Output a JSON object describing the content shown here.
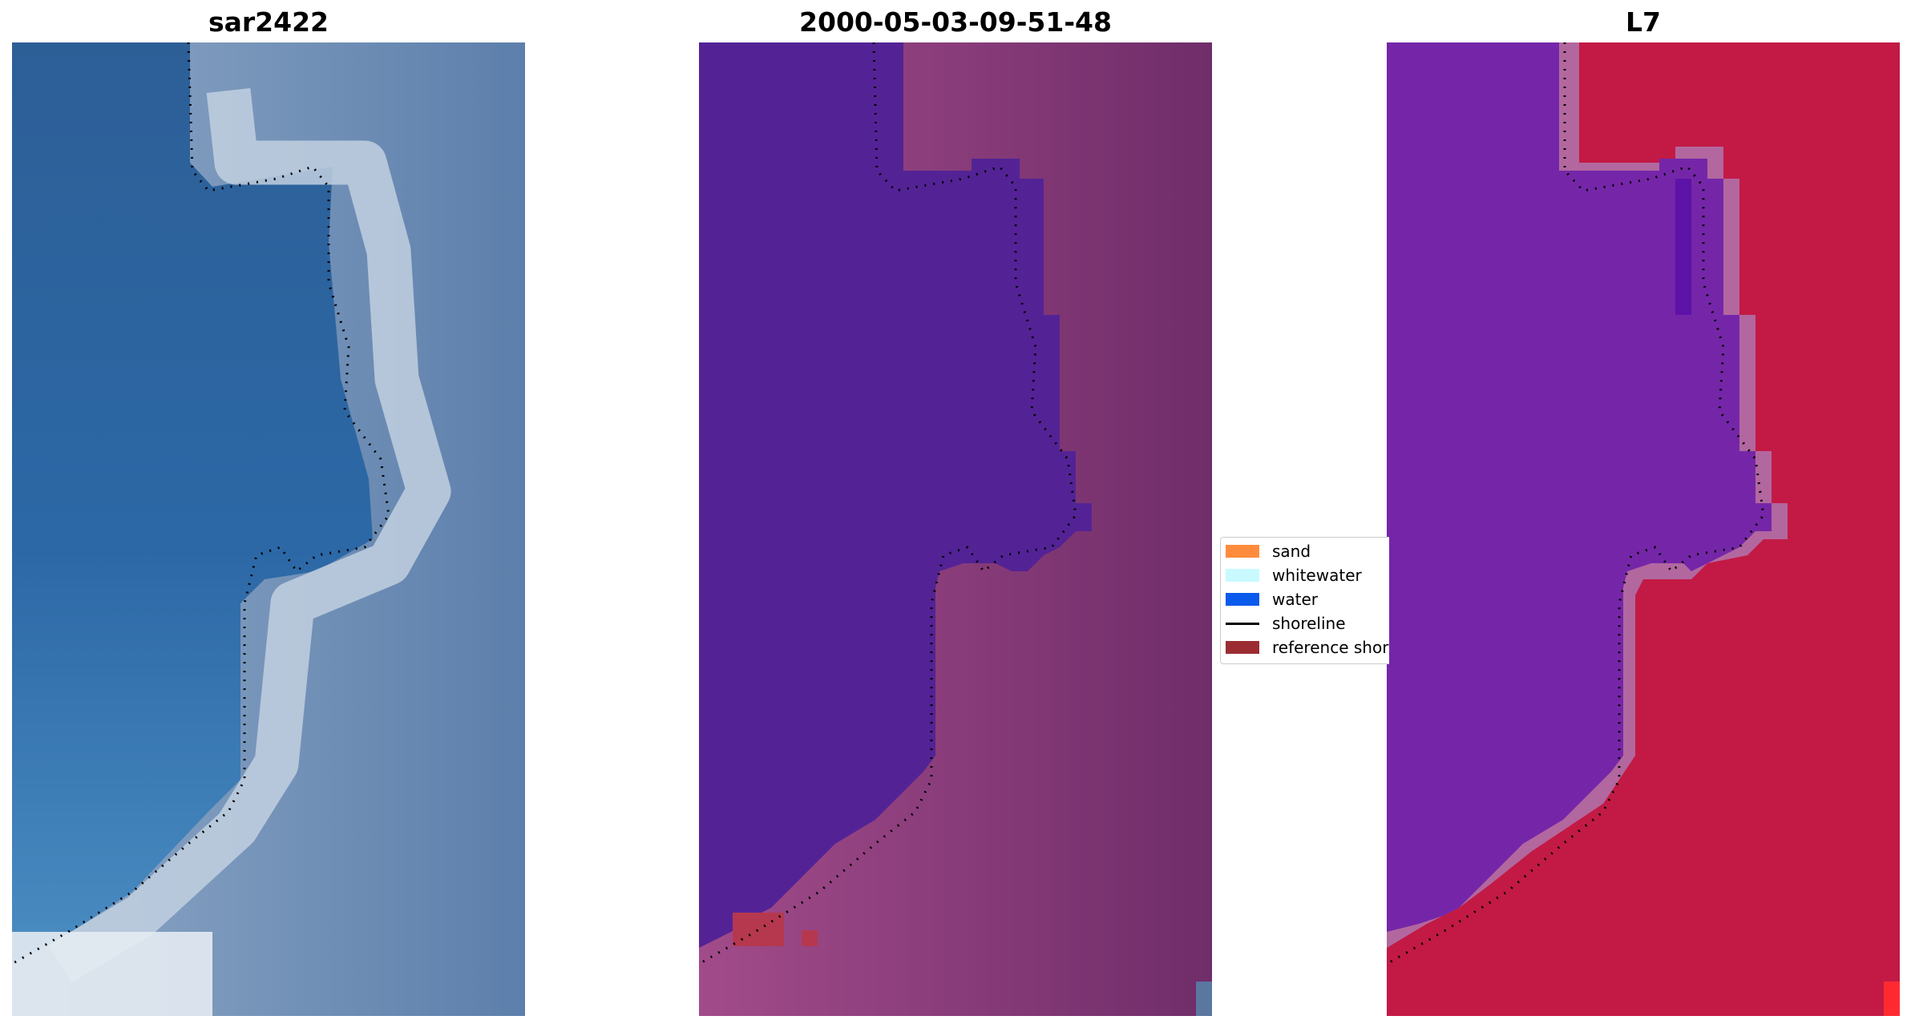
{
  "panels": [
    {
      "title": "sar2422"
    },
    {
      "title": "2000-05-03-09-51-48"
    },
    {
      "title": "L7"
    }
  ],
  "legend": {
    "items": [
      {
        "label": "sand",
        "color": "#ff8c3c",
        "kind": "patch"
      },
      {
        "label": "whitewater",
        "color": "#c8faff",
        "kind": "patch"
      },
      {
        "label": "water",
        "color": "#0a5aeb",
        "kind": "patch"
      },
      {
        "label": "shoreline",
        "color": "#000000",
        "kind": "line"
      },
      {
        "label": "reference shoreline buffer",
        "color": "#9b2d32",
        "kind": "patch"
      }
    ]
  },
  "colors": {
    "rgb_water": "#2e5f96",
    "rgb_land": "#6f8db4",
    "rgb_surf": "#c5d3e3",
    "class_water": "#522396",
    "class_land": "#7b3472",
    "class_land_light": "#a24b8a",
    "class_buffer": "#b5384f",
    "index_water": "#7526a8",
    "index_land": "#c21a45",
    "index_band": "#b3679f",
    "shoreline": "#000000"
  }
}
